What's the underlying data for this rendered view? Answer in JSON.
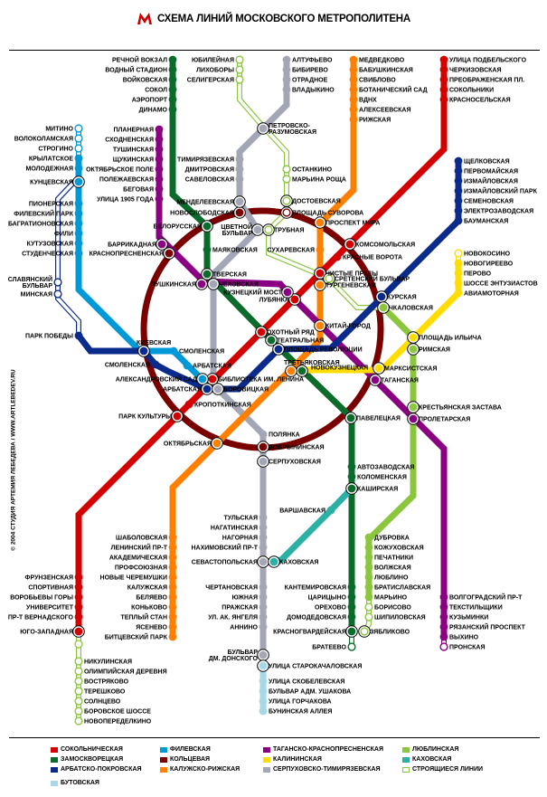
{
  "title": "СХЕМА ЛИНИЙ МОСКОВСКОГО МЕТРОПОЛИТЕНА",
  "credit": "© 2004 СТУДИЯ АРТЕМИЯ ЛЕБЕДЕВА / WWW.ARTLEBEDEV.RU",
  "logo_color": "#cc0000",
  "lines": [
    {
      "id": "sokol",
      "color": "#d40000",
      "stations": [
        {
          "name": "УЛИЦА ПОДБЕЛЬСКОГО"
        },
        {
          "name": "ЧЕРКИЗОВСКАЯ"
        },
        {
          "name": "ПРЕОБРАЖЕНСКАЯ ПЛ."
        },
        {
          "name": "СОКОЛЬНИКИ"
        },
        {
          "name": "КРАСНОСЕЛЬСКАЯ"
        },
        {
          "name": "КОМСОМОЛЬСКАЯ"
        },
        {
          "name": "КРАСНЫЕ ВОРОТА"
        },
        {
          "name": "ЧИСТЫЕ ПРУДЫ"
        },
        {
          "name": "ЛУБЯНКА"
        },
        {
          "name": "ОХОТНЫЙ РЯД"
        },
        {
          "name": "БИБЛИОТЕКА ИМ. ЛЕНИНА"
        },
        {
          "name": "КРОПОТКИНСКАЯ"
        },
        {
          "name": "ПАРК КУЛЬТУРЫ"
        },
        {
          "name": "ФРУНЗЕНСКАЯ"
        },
        {
          "name": "СПОРТИВНАЯ"
        },
        {
          "name": "ВОРОБЬЕВЫ ГОРЫ"
        },
        {
          "name": "УНИВЕРСИТЕТ"
        },
        {
          "name": "ПР-Т ВЕРНАДСКОГО"
        },
        {
          "name": "ЮГО-ЗАПАДНАЯ"
        }
      ]
    },
    {
      "id": "zamo",
      "color": "#0b6b2a",
      "stations": [
        {
          "name": "РЕЧНОЙ ВОКЗАЛ"
        },
        {
          "name": "ВОДНЫЙ СТАДИОН"
        },
        {
          "name": "ВОЙКОВСКАЯ"
        },
        {
          "name": "СОКОЛ"
        },
        {
          "name": "АЭРОПОРТ"
        },
        {
          "name": "ДИНАМО"
        },
        {
          "name": "БЕЛОРУССКАЯ"
        },
        {
          "name": "МАЯКОВСКАЯ"
        },
        {
          "name": "ТВЕРСКАЯ"
        },
        {
          "name": "ТЕАТРАЛЬНАЯ"
        },
        {
          "name": "НОВОКУЗНЕЦКАЯ"
        },
        {
          "name": "ПАВЕЛЕЦКАЯ"
        },
        {
          "name": "АВТОЗАВОДСКАЯ"
        },
        {
          "name": "КОЛОМЕНСКАЯ"
        },
        {
          "name": "КАШИРСКАЯ"
        },
        {
          "name": "КАНТЕМИРОВСКАЯ"
        },
        {
          "name": "ЦАРИЦЫНО"
        },
        {
          "name": "ОРЕХОВО"
        },
        {
          "name": "ДОМОДЕДОВСКАЯ"
        },
        {
          "name": "КРАСНОГВАРДЕЙСКАЯ"
        },
        {
          "name": "БРАТЕЕВО",
          "construction": true
        }
      ]
    },
    {
      "id": "arbat",
      "color": "#0b2b8c",
      "stations": [
        {
          "name": "ЩЕЛКОВСКАЯ"
        },
        {
          "name": "ПЕРВОМАЙСКАЯ"
        },
        {
          "name": "ИЗМАЙЛОВСКАЯ"
        },
        {
          "name": "ИЗМАЙЛОВСКИЙ ПАРК"
        },
        {
          "name": "СЕМЕНОВСКАЯ"
        },
        {
          "name": "ЭЛЕКТРОЗАВОДСКАЯ"
        },
        {
          "name": "БАУМАНСКАЯ"
        },
        {
          "name": "КУРСКАЯ"
        },
        {
          "name": "ПЛОЩАДЬ РЕВОЛЮЦИИ"
        },
        {
          "name": "АРБАТСКАЯ"
        },
        {
          "name": "СМОЛЕНСКАЯ"
        },
        {
          "name": "КИЕВСКАЯ"
        },
        {
          "name": "ПАРК ПОБЕДЫ"
        },
        {
          "name": "СЛАВЯНСКИЙ\nБУЛЬВАР",
          "construction": true
        },
        {
          "name": "МИНСКАЯ",
          "construction": true
        }
      ]
    },
    {
      "id": "fili",
      "color": "#0099d8",
      "stations": [
        {
          "name": "МИТИНО",
          "construction": true
        },
        {
          "name": "ВОЛОКОЛАМСКАЯ",
          "construction": true
        },
        {
          "name": "СТРОГИНО",
          "construction": true
        },
        {
          "name": "КРЫЛАТСКОЕ"
        },
        {
          "name": "МОЛОДЕЖНАЯ"
        },
        {
          "name": "КУНЦЕВСКАЯ"
        },
        {
          "name": "ПИОНЕРСКАЯ"
        },
        {
          "name": "ФИЛЕВСКИЙ ПАРК"
        },
        {
          "name": "БАГРАТИОНОВСКАЯ"
        },
        {
          "name": "ФИЛИ"
        },
        {
          "name": "КУТУЗОВСКАЯ"
        },
        {
          "name": "СТУДЕНЧЕСКАЯ"
        },
        {
          "name": "СМОЛЕНСКАЯ"
        },
        {
          "name": "АРБАТСКАЯ"
        },
        {
          "name": "АЛЕКСАНДРОВСКИЙ САД"
        }
      ]
    },
    {
      "id": "ring",
      "color": "#7a0000",
      "stations": [
        {
          "name": "НОВОСЛОБОДСКАЯ"
        },
        {
          "name": "КРАСНОПРЕСНЕНСКАЯ"
        },
        {
          "name": "ДОБРЫНИНСКАЯ"
        },
        {
          "name": "ПЛОЩАДЬ СУВОРОВА",
          "construction": true
        }
      ]
    },
    {
      "id": "kalor",
      "color": "#ff8000",
      "stations": [
        {
          "name": "МЕДВЕДКОВО"
        },
        {
          "name": "БАБУШКИНСКАЯ"
        },
        {
          "name": "СВИБЛОВО"
        },
        {
          "name": "БОТАНИЧЕСКИЙ САД"
        },
        {
          "name": "ВДНХ"
        },
        {
          "name": "АЛЕКСЕЕВСКАЯ"
        },
        {
          "name": "РИЖСКАЯ"
        },
        {
          "name": "ПРОСПЕКТ МИРА"
        },
        {
          "name": "СУХАРЕВСКАЯ"
        },
        {
          "name": "ТУРГЕНЕВСКАЯ"
        },
        {
          "name": "КИТАЙ-ГОРОД"
        },
        {
          "name": "ТРЕТЬЯКОВСКАЯ"
        },
        {
          "name": "ОКТЯБРЬСКАЯ"
        },
        {
          "name": "ШАБОЛОВСКАЯ"
        },
        {
          "name": "ЛЕНИНСКИЙ ПР-Т"
        },
        {
          "name": "АКАДЕМИЧЕСКАЯ"
        },
        {
          "name": "ПРОФСОЮЗНАЯ"
        },
        {
          "name": "НОВЫЕ ЧЕРЕМУШКИ"
        },
        {
          "name": "КАЛУЖСКАЯ"
        },
        {
          "name": "БЕЛЯЕВО"
        },
        {
          "name": "КОНЬКОВО"
        },
        {
          "name": "ТЕПЛЫЙ СТАН"
        },
        {
          "name": "ЯСЕНЕВО"
        },
        {
          "name": "БИТЦЕВСКИЙ ПАРК"
        }
      ]
    },
    {
      "id": "tagan",
      "color": "#8b0082",
      "stations": [
        {
          "name": "ПЛАНЕРНАЯ"
        },
        {
          "name": "СХОДНЕНСКАЯ"
        },
        {
          "name": "ТУШИНСКАЯ"
        },
        {
          "name": "ЩУКИНСКАЯ"
        },
        {
          "name": "ОКТЯБРЬСКОЕ ПОЛЕ"
        },
        {
          "name": "ПОЛЕЖАЕВСКАЯ"
        },
        {
          "name": "БЕГОВАЯ"
        },
        {
          "name": "УЛИЦА 1905 ГОДА"
        },
        {
          "name": "БАРРИКАДНАЯ"
        },
        {
          "name": "ПУШКИНСКАЯ"
        },
        {
          "name": "КУЗНЕЦКИЙ МОСТ"
        },
        {
          "name": "ТАГАНСКАЯ"
        },
        {
          "name": "ПРОЛЕТАРСКАЯ"
        },
        {
          "name": "ВОЛГОГРАДСКИЙ ПР-Т"
        },
        {
          "name": "ТЕКСТИЛЬЩИКИ"
        },
        {
          "name": "КУЗЬМИНКИ"
        },
        {
          "name": "РЯЗАНСКИЙ ПРОСПЕКТ"
        },
        {
          "name": "ВЫХИНО"
        },
        {
          "name": "ПРОНСКАЯ",
          "construction": true
        }
      ]
    },
    {
      "id": "kalin",
      "color": "#ffdd00",
      "stations": [
        {
          "name": "НОВОКОСИНО",
          "construction": true
        },
        {
          "name": "НОВОГИРЕЕВО"
        },
        {
          "name": "ПЕРОВО"
        },
        {
          "name": "ШОССЕ ЭНТУЗИАСТОВ"
        },
        {
          "name": "АВИАМОТОРНАЯ"
        },
        {
          "name": "ПЛОЩАДЬ ИЛЬИЧА"
        },
        {
          "name": "МАРКСИСТСКАЯ"
        }
      ]
    },
    {
      "id": "serp",
      "color": "#a3a6b4",
      "stations": [
        {
          "name": "АЛТУФЬЕВО"
        },
        {
          "name": "БИБИРЕВО"
        },
        {
          "name": "ОТРАДНОЕ"
        },
        {
          "name": "ВЛАДЫКИНО"
        },
        {
          "name": "ПЕТРОВСКО-\nРАЗУМОВСКАЯ"
        },
        {
          "name": "ТИМИРЯЗЕВСКАЯ"
        },
        {
          "name": "ДМИТРОВСКАЯ"
        },
        {
          "name": "САВЕЛОВСКАЯ"
        },
        {
          "name": "МЕНДЕЛЕЕВСКАЯ"
        },
        {
          "name": "ЦВЕТНОЙ\nБУЛЬВАР"
        },
        {
          "name": "ЧЕХОВСКАЯ"
        },
        {
          "name": "БОРОВИЦКАЯ"
        },
        {
          "name": "ПОЛЯНКА"
        },
        {
          "name": "СЕРПУХОВСКАЯ"
        },
        {
          "name": "ТУЛЬСКАЯ"
        },
        {
          "name": "НАГАТИНСКАЯ"
        },
        {
          "name": "НАГОРНАЯ"
        },
        {
          "name": "НАХИМОВСКИЙ ПР-Т"
        },
        {
          "name": "СЕВАСТОПОЛЬСКАЯ"
        },
        {
          "name": "ЧЕРТАНОВСКАЯ"
        },
        {
          "name": "ЮЖНАЯ"
        },
        {
          "name": "ПРАЖСКАЯ"
        },
        {
          "name": "УЛ. АК. ЯНГЕЛЯ"
        },
        {
          "name": "АННИНО"
        },
        {
          "name": "БУЛЬВАР\nДМ. ДОНСКОГО"
        }
      ]
    },
    {
      "id": "butovo",
      "color": "#a6d8e8",
      "stations": [
        {
          "name": "УЛИЦА СТАРОКАЧАЛОВСКАЯ"
        },
        {
          "name": "УЛИЦА СКОБЕЛЕВСКАЯ"
        },
        {
          "name": "БУЛЬВАР АДМ. УШАКОВА"
        },
        {
          "name": "УЛИЦА ГОРЧАКОВА"
        },
        {
          "name": "БУНИНСКАЯ АЛЛЕЯ"
        }
      ]
    },
    {
      "id": "lyub",
      "color": "#8cc63f",
      "stations": [
        {
          "name": "ЧКАЛОВСКАЯ"
        },
        {
          "name": "РИМСКАЯ"
        },
        {
          "name": "КРЕСТЬЯНСКАЯ ЗАСТАВА"
        },
        {
          "name": "ДУБРОВКА"
        },
        {
          "name": "КОЖУХОВСКАЯ"
        },
        {
          "name": "ПЕЧАТНИКИ"
        },
        {
          "name": "ВОЛЖСКАЯ"
        },
        {
          "name": "ЛЮБЛИНО"
        },
        {
          "name": "БРАТИСЛАВСКАЯ"
        },
        {
          "name": "МАРЬИНО"
        },
        {
          "name": "БОРИСОВО",
          "construction": true
        },
        {
          "name": "ШИПИЛОВСКАЯ",
          "construction": true
        },
        {
          "name": "ЗЯБЛИКОВО",
          "construction": true
        }
      ]
    },
    {
      "id": "kakh",
      "color": "#2bb0a5",
      "stations": [
        {
          "name": "ВАРШАВСКАЯ"
        },
        {
          "name": "КАХОВСКАЯ"
        }
      ]
    },
    {
      "id": "north",
      "color": "#8cc63f",
      "stations": [
        {
          "name": "ЮБИЛЕЙНАЯ",
          "construction": true
        },
        {
          "name": "ЛИХОБОРЫ",
          "construction": true
        },
        {
          "name": "СЕЛИГЕРСКАЯ",
          "construction": true
        },
        {
          "name": "ОСТАНКИНО",
          "construction": true
        },
        {
          "name": "МАРЬИНА РОЩА",
          "construction": true
        },
        {
          "name": "ДОСТОЕВСКАЯ",
          "construction": true
        },
        {
          "name": "ТРУБНАЯ",
          "construction": true
        },
        {
          "name": "СРЕТЕНСКИЙ БУЛЬВАР",
          "construction": true
        }
      ]
    },
    {
      "id": "solnc",
      "color": "#8cc63f",
      "stations": [
        {
          "name": "НИКУЛИНСКАЯ",
          "construction": true
        },
        {
          "name": "ОЛИМПИЙСКАЯ ДЕРЕВНЯ",
          "construction": true
        },
        {
          "name": "ВОСТРЯКОВО",
          "construction": true
        },
        {
          "name": "ТЕРЕШКОВО",
          "construction": true
        },
        {
          "name": "СОЛНЦЕВО",
          "construction": true
        },
        {
          "name": "БОРОВСКОЕ ШОССЕ",
          "construction": true
        },
        {
          "name": "НОВОПЕРЕДЕЛКИНО",
          "construction": true
        }
      ]
    }
  ],
  "legend": [
    {
      "label": "СОКОЛЬНИЧЕСКАЯ",
      "color": "#d40000"
    },
    {
      "label": "ЗАМОСКВОРЕЦКАЯ",
      "color": "#0b6b2a"
    },
    {
      "label": "АРБАТСКО-ПОКРОВСКАЯ",
      "color": "#0b2b8c"
    },
    {
      "label": "ФИЛЕВСКАЯ",
      "color": "#0099d8"
    },
    {
      "label": "КОЛЬЦЕВАЯ",
      "color": "#7a0000"
    },
    {
      "label": "КАЛУЖСКО-РИЖСКАЯ",
      "color": "#ff8000"
    },
    {
      "label": "ТАГАНСКО-КРАСНОПРЕСНЕНСКАЯ",
      "color": "#8b0082"
    },
    {
      "label": "КАЛИНИНСКАЯ",
      "color": "#ffdd00"
    },
    {
      "label": "СЕРПУХОВСКО-ТИМИРЯЗЕВСКАЯ",
      "color": "#a3a6b4"
    },
    {
      "label": "ЛЮБЛИНСКАЯ",
      "color": "#8cc63f"
    },
    {
      "label": "КАХОВСКАЯ",
      "color": "#2bb0a5"
    },
    {
      "label": "СТРОЯЩИЕСЯ ЛИНИИ",
      "color": "#8cc63f",
      "outline": true
    },
    {
      "label": "БУТОВСКАЯ",
      "color": "#a6d8e8"
    }
  ]
}
